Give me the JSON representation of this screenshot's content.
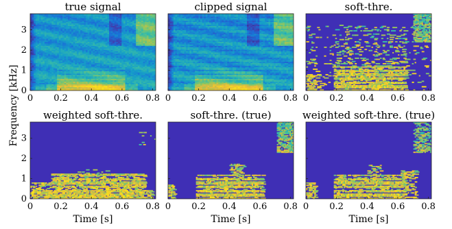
{
  "figure": {
    "ylabel": "Frequency [kHz]",
    "xlabel": "Time [s]"
  },
  "colors": {
    "background": "#3f2fb5",
    "colormap": [
      "#352a87",
      "#3e41b1",
      "#1a6fd8",
      "#16a0c8",
      "#3bbda4",
      "#8ec660",
      "#e7ba3c",
      "#f9e21a"
    ]
  },
  "chart_data": [
    {
      "type": "heatmap",
      "id": "true-signal",
      "title": "true signal",
      "xlim": [
        0,
        0.82
      ],
      "ylim": [
        0,
        3.8
      ],
      "xticks": [
        0,
        0.2,
        0.4,
        0.6,
        0.8
      ],
      "yticks": [
        0,
        1,
        2,
        3
      ],
      "xlabel": "",
      "ylabel": "",
      "style": "dense"
    },
    {
      "type": "heatmap",
      "id": "clipped-signal",
      "title": "clipped signal",
      "xlim": [
        0,
        0.82
      ],
      "ylim": [
        0,
        3.8
      ],
      "xticks": [
        0,
        0.2,
        0.4,
        0.6,
        0.8
      ],
      "yticks": [
        0,
        1,
        2,
        3
      ],
      "xlabel": "",
      "ylabel": "",
      "style": "dense"
    },
    {
      "type": "heatmap",
      "id": "soft-thre",
      "title": "soft-thre.",
      "xlim": [
        0,
        0.82
      ],
      "ylim": [
        0,
        3.8
      ],
      "xticks": [
        0,
        0.2,
        0.4,
        0.6,
        0.8
      ],
      "yticks": [
        0,
        1,
        2,
        3
      ],
      "xlabel": "",
      "ylabel": "",
      "style": "sparse-wide"
    },
    {
      "type": "heatmap",
      "id": "weighted-soft-thre",
      "title": "weighted soft-thre.",
      "xlim": [
        0,
        0.82
      ],
      "ylim": [
        0,
        3.8
      ],
      "xticks": [
        0,
        0.2,
        0.4,
        0.6,
        0.8
      ],
      "yticks": [
        0,
        1,
        2,
        3
      ],
      "xlabel": "",
      "ylabel": "",
      "style": "sparse-low"
    },
    {
      "type": "heatmap",
      "id": "soft-thre-true",
      "title": "soft-thre. (true)",
      "xlim": [
        0,
        0.82
      ],
      "ylim": [
        0,
        3.8
      ],
      "xticks": [
        0,
        0.2,
        0.4,
        0.6,
        0.8
      ],
      "yticks": [
        0,
        1,
        2,
        3
      ],
      "xlabel": "",
      "ylabel": "",
      "style": "sparse-true"
    },
    {
      "type": "heatmap",
      "id": "weighted-soft-thre-true",
      "title": "weighted soft-thre. (true)",
      "xlim": [
        0,
        0.82
      ],
      "ylim": [
        0,
        3.8
      ],
      "xticks": [
        0,
        0.2,
        0.4,
        0.6,
        0.8
      ],
      "yticks": [
        0,
        1,
        2,
        3
      ],
      "xlabel": "",
      "ylabel": "",
      "style": "sparse-true-weighted"
    }
  ]
}
